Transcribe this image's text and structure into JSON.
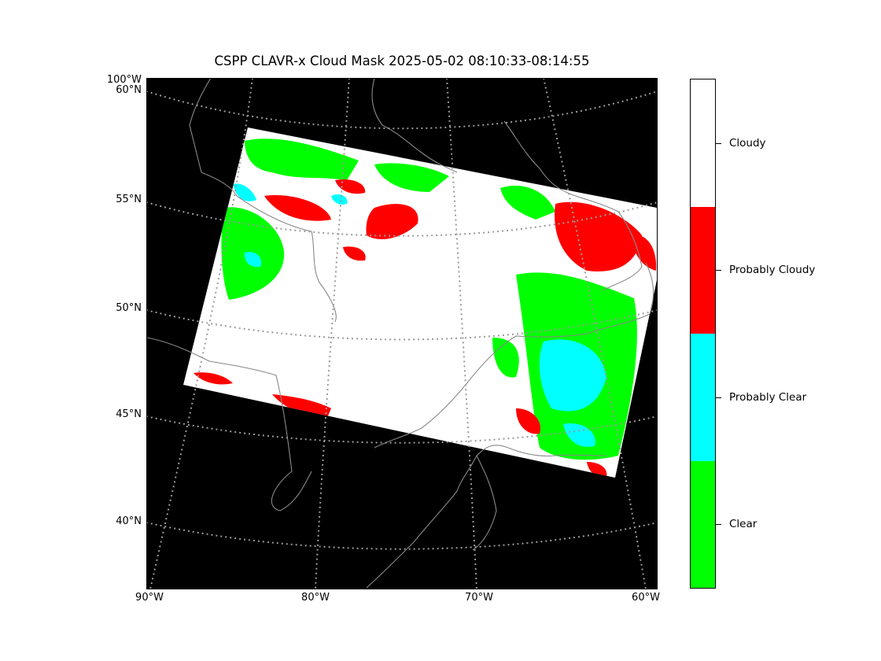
{
  "title": "CSPP CLAVR-x Cloud Mask 2025-05-02 08:10:33-08:14:55",
  "map": {
    "background_color": "#000000",
    "coastline_color": "#888888",
    "gridline_color": "#9a9a9a",
    "gridline_style": "dotted",
    "lat_labels": [
      "60°N",
      "55°N",
      "50°N",
      "45°N",
      "40°N"
    ],
    "lon_labels": [
      "90°W",
      "80°W",
      "70°W",
      "60°W"
    ],
    "corner_label": "100°W"
  },
  "legend": {
    "categories": [
      {
        "label": "Cloudy",
        "color": "#ffffff"
      },
      {
        "label": "Probably Cloudy",
        "color": "#ff0000"
      },
      {
        "label": "Probably Clear",
        "color": "#00ffff"
      },
      {
        "label": "Clear",
        "color": "#00ff00"
      }
    ]
  }
}
